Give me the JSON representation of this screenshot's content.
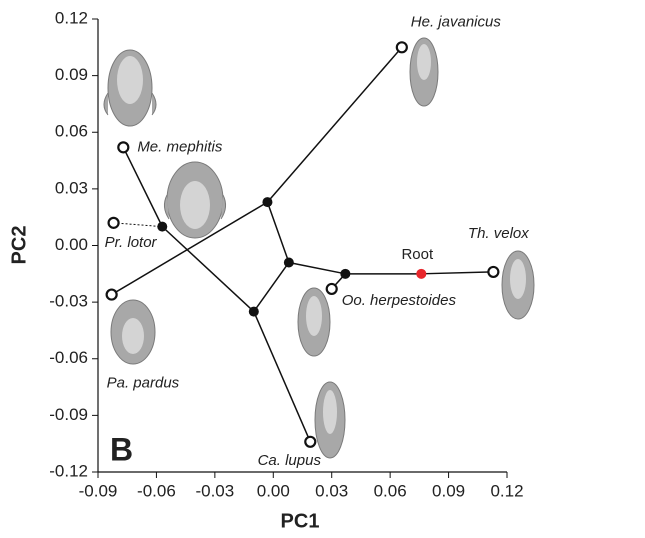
{
  "chart_data": {
    "type": "scatter",
    "xlabel": "PC1",
    "ylabel": "PC2",
    "annotation": "B",
    "xlim": [
      -0.09,
      0.12
    ],
    "ylim": [
      -0.12,
      0.12
    ],
    "xticks": [
      -0.09,
      -0.06,
      -0.03,
      {
        "value": 0,
        "label": "0.00"
      },
      0.03,
      0.06,
      0.09,
      0.12
    ],
    "yticks": [
      0.12,
      0.09,
      0.06,
      0.03,
      {
        "value": 0,
        "label": "0.00"
      },
      -0.03,
      -0.06,
      -0.09,
      -0.12
    ],
    "x": [
      0.066,
      -0.077,
      -0.082,
      -0.083,
      0.019,
      0.03,
      0.113,
      0.076,
      -0.057,
      -0.003,
      0.008,
      -0.01,
      0.037
    ],
    "y": [
      0.105,
      0.052,
      0.012,
      -0.026,
      -0.104,
      -0.023,
      -0.014,
      -0.015,
      0.01,
      0.023,
      -0.009,
      -0.035,
      -0.015
    ],
    "point_labels": [
      "He. javanicus",
      "Me. mephitis",
      "Pr. lotor",
      "Pa. pardus",
      "Ca. lupus",
      "Oo. herpestoides",
      "Th. velox",
      "Root",
      null,
      null,
      null,
      null,
      null
    ],
    "marker": [
      "open",
      "open",
      "open",
      "open",
      "open",
      "open",
      "open",
      "filled",
      "filled",
      "filled",
      "filled",
      "filled",
      "filled"
    ],
    "marker_colors": [
      "#111111",
      "#111111",
      "#111111",
      "#111111",
      "#111111",
      "#111111",
      "#111111",
      "#e8262b",
      "#111111",
      "#111111",
      "#111111",
      "#111111",
      "#111111"
    ],
    "edges": [
      {
        "from": 1,
        "to": 8,
        "style": "solid"
      },
      {
        "from": 2,
        "to": 8,
        "style": "dotted"
      },
      {
        "from": 8,
        "to": 11,
        "style": "solid"
      },
      {
        "from": 11,
        "to": 4,
        "style": "solid"
      },
      {
        "from": 11,
        "to": 10,
        "style": "solid"
      },
      {
        "from": 10,
        "to": 9,
        "style": "solid"
      },
      {
        "from": 9,
        "to": 0,
        "style": "solid"
      },
      {
        "from": 9,
        "to": 3,
        "style": "solid"
      },
      {
        "from": 10,
        "to": 12,
        "style": "solid"
      },
      {
        "from": 12,
        "to": 5,
        "style": "solid"
      },
      {
        "from": 12,
        "to": 7,
        "style": "solid"
      },
      {
        "from": 7,
        "to": 6,
        "style": "solid"
      }
    ]
  }
}
